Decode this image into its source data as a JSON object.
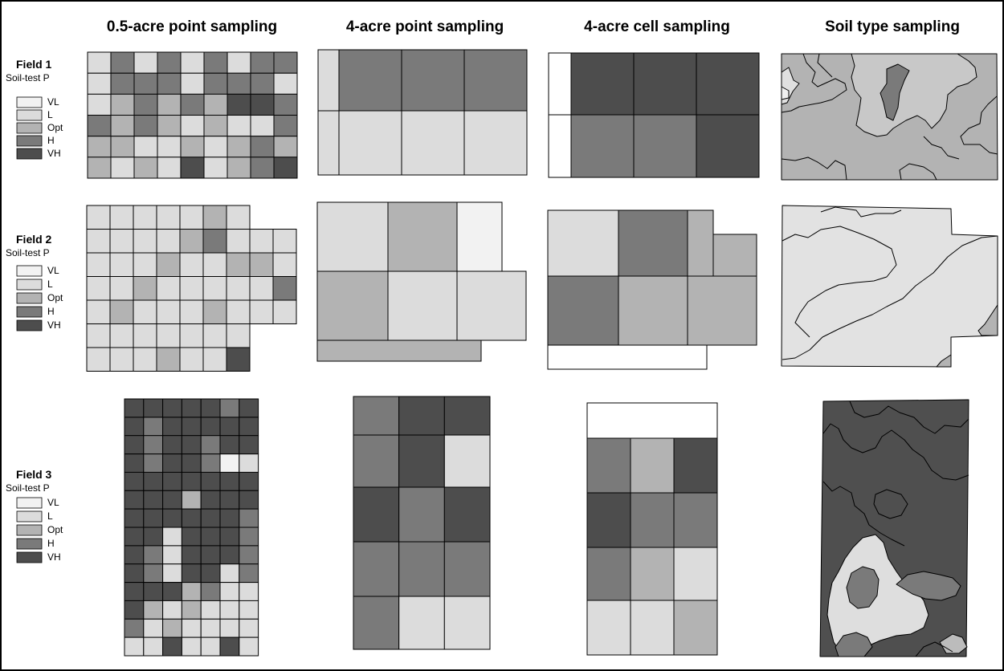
{
  "columns": [
    "0.5-acre point sampling",
    "4-acre point sampling",
    "4-acre cell sampling",
    "Soil type sampling"
  ],
  "classes": [
    {
      "key": "VL",
      "label": "VL",
      "color": "#f2f2f2"
    },
    {
      "key": "L",
      "label": "L",
      "color": "#dcdcdc"
    },
    {
      "key": "Opt",
      "label": "Opt",
      "color": "#b3b3b3"
    },
    {
      "key": "H",
      "label": "H",
      "color": "#7a7a7a"
    },
    {
      "key": "VH",
      "label": "VH",
      "color": "#4d4d4d"
    }
  ],
  "fields": [
    {
      "title": "Field 1",
      "subtitle": "Soil-test P",
      "point_half_acre": [
        "L H L H L H L H H",
        "L H H H L H H H L",
        "L O H O H O VH VH H",
        "H O H O L O L L H",
        "O O L L O L O H O",
        "O L O L VH L O H VH"
      ],
      "point_4acre": [
        "L H H H",
        "L L L L"
      ],
      "cell_4acre": [
        "W VH VH VH",
        "W H H VH"
      ]
    },
    {
      "title": "Field 2",
      "subtitle": "Soil-test P",
      "point_half_acre": [
        "L L L L L O L",
        "L L L L O H L L L",
        "L L L O L L O O L",
        "L L O L L L L L H",
        "L O L L L O L L L",
        "L L L L L L L",
        "L L L O L L VH"
      ],
      "point_4acre": [
        "L O VL",
        "O L L",
        "O"
      ],
      "cell_4acre": [
        "L H O",
        "H O O",
        "W"
      ]
    },
    {
      "title": "Field 3",
      "subtitle": "Soil-test P",
      "point_half_acre": [
        "VH VH VH VH VH H VH",
        "VH H VH VH VH VH VH",
        "VH H VH VH H VH VH",
        "VH H VH VH H VL L",
        "VH VH VH VH VH VH VH",
        "VH VH VH O VH VH VH",
        "VH VH VH VH VH VH H",
        "VH VH L VH VH VH H",
        "VH H L VH VH VH H",
        "VH H L VH VH L H",
        "VH VH VH O H L L",
        "VH O L O L L L",
        "H L O L L L L",
        "L L VH L L VH L"
      ],
      "point_4acre": [
        "H VH VH",
        "H VH L",
        "VH H VH",
        "H H H",
        "H L L"
      ],
      "cell_4acre": [
        "W",
        "H O VH",
        "VH H H",
        "H O L",
        "L L O"
      ]
    }
  ]
}
